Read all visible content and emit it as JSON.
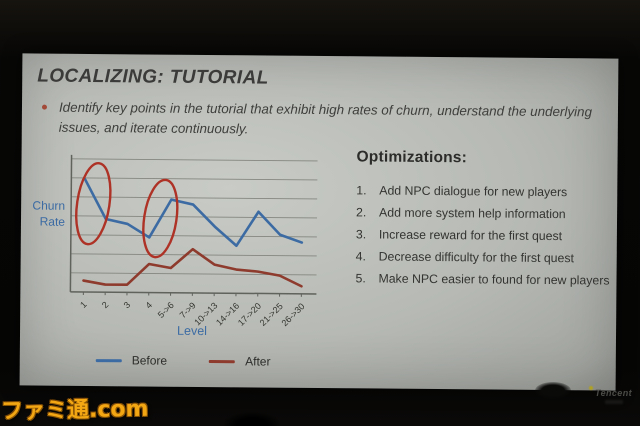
{
  "photo": {
    "watermark": "ファミ通.com",
    "logo": "Tencent"
  },
  "slide": {
    "title": "LOCALIZING: TUTORIAL",
    "bullet": "Identify key points in the tutorial that exhibit high rates of churn, understand the underlying issues, and iterate continuously.",
    "optimizations": {
      "heading": "Optimizations:",
      "items": [
        "Add NPC dialogue for new players",
        "Add more system help information",
        "Increase reward for the first quest",
        "Decrease difficulty for the first quest",
        "Make NPC easier to found for new players"
      ]
    }
  },
  "chart_data": {
    "type": "line",
    "title": "",
    "xlabel": "Level",
    "ylabel": "Churn Rate",
    "categories": [
      "1",
      "2",
      "3",
      "4",
      "5->6",
      "7->9",
      "10->13",
      "14->16",
      "17->20",
      "21->25",
      "26->30"
    ],
    "series": [
      {
        "name": "Before",
        "color": "#3c6ba3",
        "values": [
          6.0,
          3.85,
          3.6,
          2.9,
          4.9,
          4.65,
          3.5,
          2.5,
          4.3,
          3.1,
          2.7
        ]
      },
      {
        "name": "After",
        "color": "#8e3a2c",
        "values": [
          0.6,
          0.4,
          0.4,
          1.5,
          1.3,
          2.3,
          1.5,
          1.25,
          1.15,
          0.95,
          0.4
        ]
      }
    ],
    "ylim": [
      0,
      7
    ],
    "y_tick_labels": [],
    "gridlines": true,
    "legend_position": "bottom",
    "annotations": [
      {
        "type": "ellipse",
        "label": "high-churn-highlight-1",
        "cx_index": 0.42,
        "cy_value": 4.65,
        "rx_indices": 0.74,
        "ry_values": 2.15,
        "rotate_deg": 8,
        "color": "#ae3226"
      },
      {
        "type": "ellipse",
        "label": "high-churn-highlight-2",
        "cx_index": 3.5,
        "cy_value": 3.9,
        "rx_indices": 0.74,
        "ry_values": 2.05,
        "rotate_deg": 8,
        "color": "#ae3226"
      }
    ]
  }
}
